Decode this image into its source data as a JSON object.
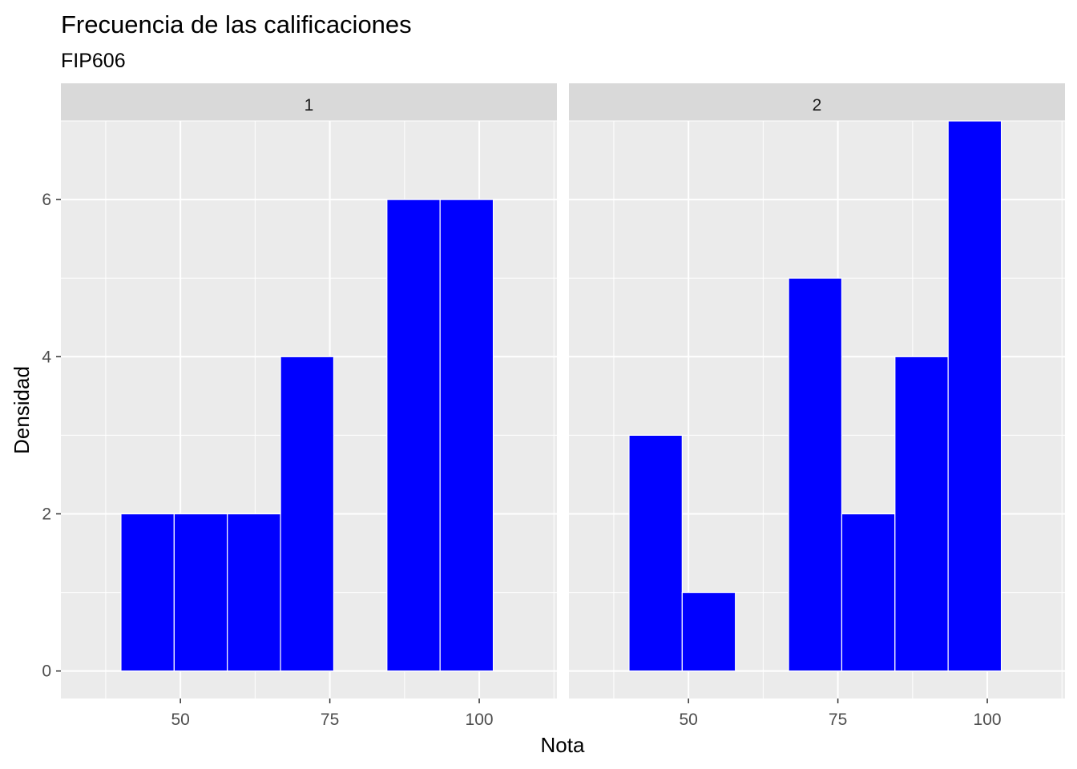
{
  "chart_data": {
    "type": "bar",
    "title": "Frecuencia de las calificaciones",
    "subtitle": "FIP606",
    "xlabel": "Nota",
    "ylabel": "Densidad",
    "xlim": [
      30,
      113
    ],
    "ylim": [
      -0.35,
      7.0
    ],
    "x_ticks": [
      50,
      75,
      100
    ],
    "y_ticks": [
      0,
      2,
      4,
      6
    ],
    "grid": true,
    "bin_width": 8.9,
    "bar_color": "#0000FF",
    "bar_outline": "#FFFFFF",
    "panel_background": "#EBEBEB",
    "strip_background": "#D9D9D9",
    "facets": [
      {
        "label": "1",
        "bins": [
          {
            "x": 44.5,
            "count": 2
          },
          {
            "x": 53.4,
            "count": 2
          },
          {
            "x": 62.3,
            "count": 2
          },
          {
            "x": 71.2,
            "count": 4
          },
          {
            "x": 80.1,
            "count": 0
          },
          {
            "x": 89.0,
            "count": 6
          },
          {
            "x": 97.9,
            "count": 6
          }
        ]
      },
      {
        "label": "2",
        "bins": [
          {
            "x": 44.5,
            "count": 3
          },
          {
            "x": 53.4,
            "count": 1
          },
          {
            "x": 62.3,
            "count": 0
          },
          {
            "x": 71.2,
            "count": 5
          },
          {
            "x": 80.1,
            "count": 2
          },
          {
            "x": 89.0,
            "count": 4
          },
          {
            "x": 97.9,
            "count": 7
          }
        ]
      }
    ]
  }
}
